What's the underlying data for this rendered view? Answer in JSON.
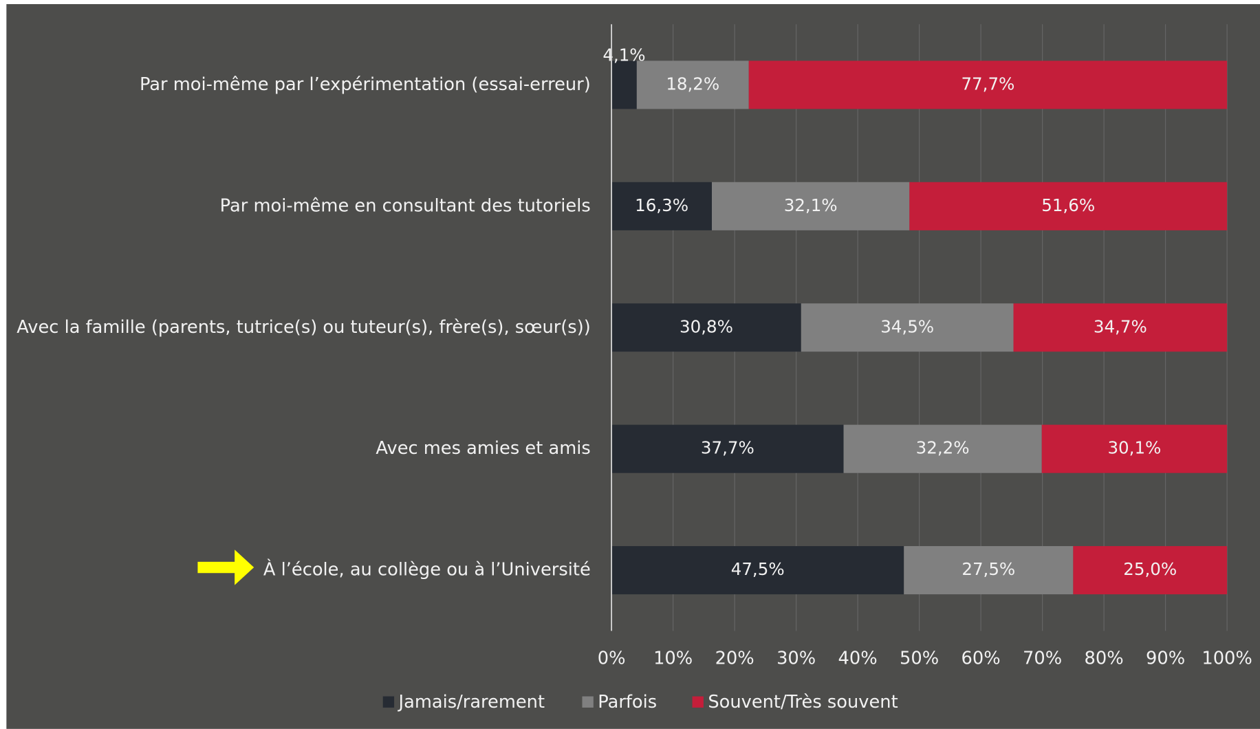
{
  "chart_data": {
    "type": "stacked_barh",
    "categories": [
      "Par moi-même par l’expérimentation (essai-erreur)",
      "Par moi-même en consultant des tutoriels",
      "Avec la famille (parents, tutrice(s) ou tuteur(s), frère(s), sœur(s))",
      "Avec mes amies et amis",
      "À l’école, au collège ou à l’Université"
    ],
    "series": [
      {
        "name": "Jamais/rarement",
        "color": "#262b33",
        "values": [
          4.1,
          16.3,
          30.8,
          37.7,
          47.5
        ],
        "value_labels": [
          "4,1%",
          "16,3%",
          "30,8%",
          "37,7%",
          "47,5%"
        ]
      },
      {
        "name": "Parfois",
        "color": "#808080",
        "values": [
          18.2,
          32.1,
          34.5,
          32.2,
          27.5
        ],
        "value_labels": [
          "18,2%",
          "32,1%",
          "34,5%",
          "32,2%",
          "27,5%"
        ]
      },
      {
        "name": "Souvent/Très souvent",
        "color": "#c41e3a",
        "values": [
          77.7,
          51.6,
          34.7,
          30.1,
          25.0
        ],
        "value_labels": [
          "77,7%",
          "51,6%",
          "34,7%",
          "30,1%",
          "25,0%"
        ]
      }
    ],
    "xlim": [
      0,
      100
    ],
    "xticks": [
      {
        "value": 0,
        "label": "0%"
      },
      {
        "value": 10,
        "label": "10%"
      },
      {
        "value": 20,
        "label": "20%"
      },
      {
        "value": 30,
        "label": "30%"
      },
      {
        "value": 40,
        "label": "40%"
      },
      {
        "value": 50,
        "label": "50%"
      },
      {
        "value": 60,
        "label": "60%"
      },
      {
        "value": 70,
        "label": "70%"
      },
      {
        "value": 80,
        "label": "80%"
      },
      {
        "value": 90,
        "label": "90%"
      },
      {
        "value": 100,
        "label": "100%"
      }
    ],
    "grid": true,
    "legend": "bottom"
  }
}
